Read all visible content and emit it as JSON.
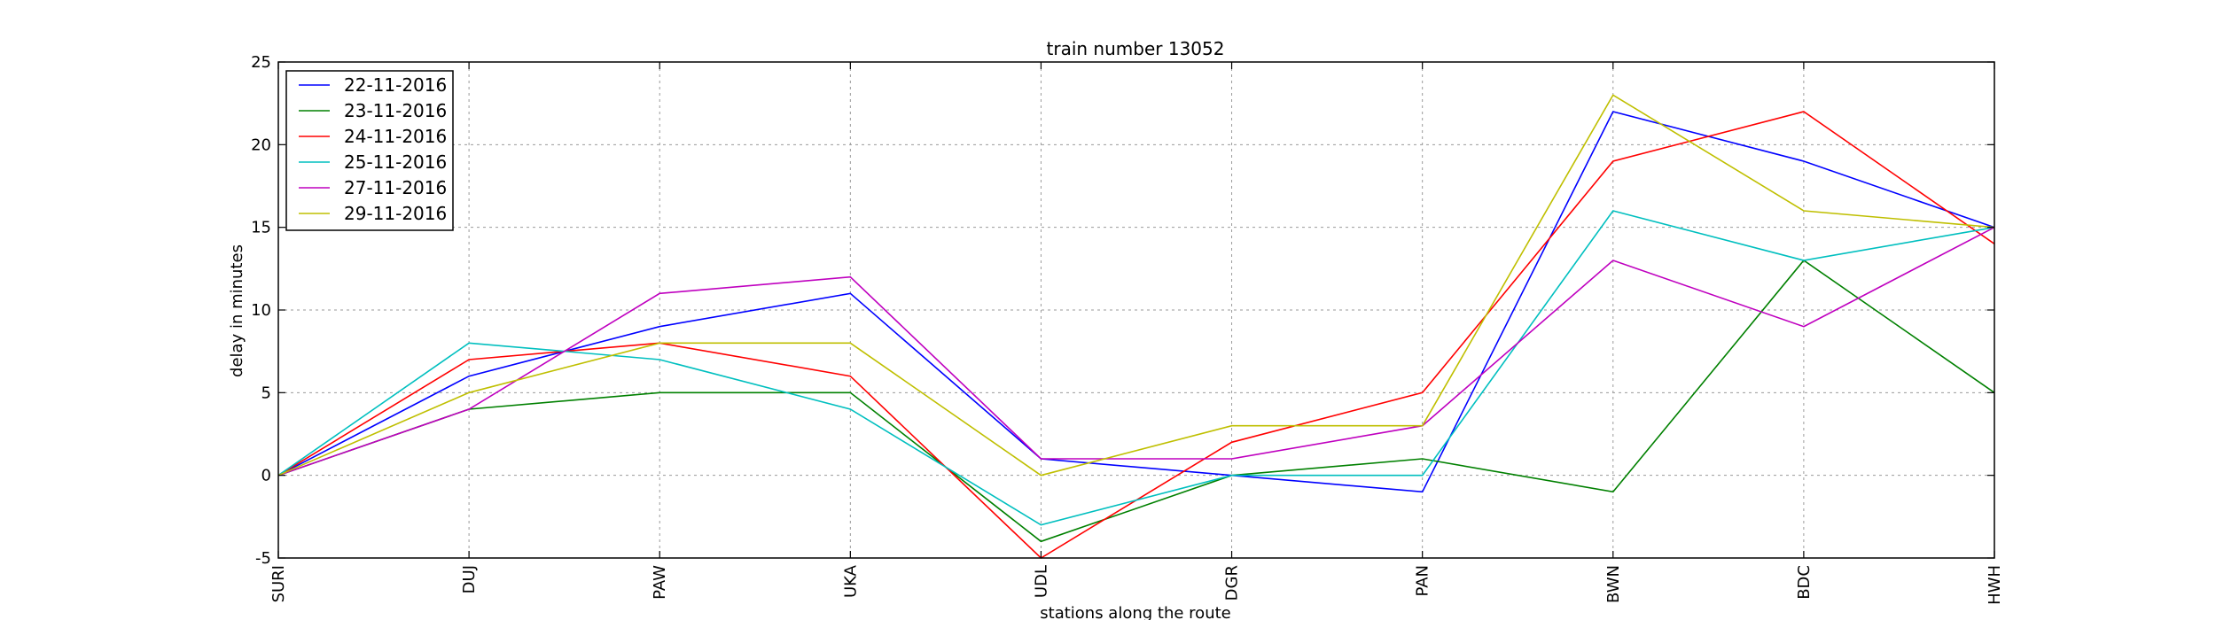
{
  "chart_data": {
    "type": "line",
    "title": "train number 13052",
    "xlabel": "stations along the route",
    "ylabel": "delay in minutes",
    "categories": [
      "SURI",
      "DUJ",
      "PAW",
      "UKA",
      "UDL",
      "DGR",
      "PAN",
      "BWN",
      "BDC",
      "HWH"
    ],
    "ylim": [
      -5,
      25
    ],
    "yticks": [
      -5,
      0,
      5,
      10,
      15,
      20,
      25
    ],
    "grid": true,
    "legend": "top-left",
    "series": [
      {
        "name": "22-11-2016",
        "color": "#0000ff",
        "values": [
          0,
          6,
          9,
          11,
          1,
          0,
          -1,
          22,
          19,
          15
        ]
      },
      {
        "name": "23-11-2016",
        "color": "#008000",
        "values": [
          0,
          4,
          5,
          5,
          -4,
          0,
          1,
          -1,
          13,
          5
        ]
      },
      {
        "name": "24-11-2016",
        "color": "#ff0000",
        "values": [
          0,
          7,
          8,
          6,
          -5,
          2,
          5,
          19,
          22,
          14
        ]
      },
      {
        "name": "25-11-2016",
        "color": "#00bfbf",
        "values": [
          0,
          8,
          7,
          4,
          -3,
          0,
          0,
          16,
          13,
          15
        ]
      },
      {
        "name": "27-11-2016",
        "color": "#bf00bf",
        "values": [
          0,
          4,
          11,
          12,
          1,
          1,
          3,
          13,
          9,
          15
        ]
      },
      {
        "name": "29-11-2016",
        "color": "#bfbf00",
        "values": [
          0,
          5,
          8,
          8,
          0,
          3,
          3,
          23,
          16,
          15
        ]
      }
    ]
  }
}
